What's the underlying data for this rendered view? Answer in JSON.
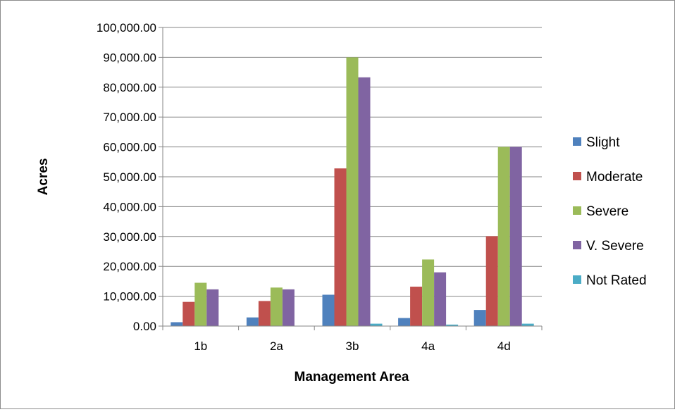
{
  "chart_data": {
    "type": "bar",
    "title": "",
    "xlabel": "Management Area",
    "ylabel": "Acres",
    "categories": [
      "1b",
      "2a",
      "3b",
      "4a",
      "4d"
    ],
    "ylim": [
      0,
      100000
    ],
    "yticks": [
      0,
      10000,
      20000,
      30000,
      40000,
      50000,
      60000,
      70000,
      80000,
      90000,
      100000
    ],
    "ytick_labels": [
      "0.00",
      "10,000.00",
      "20,000.00",
      "30,000.00",
      "40,000.00",
      "50,000.00",
      "60,000.00",
      "70,000.00",
      "80,000.00",
      "90,000.00",
      "100,000.00"
    ],
    "grid": true,
    "legend_position": "right",
    "series": [
      {
        "name": "Slight",
        "color": "#4f81bd",
        "values": [
          1300,
          2900,
          10500,
          2700,
          5400
        ]
      },
      {
        "name": "Moderate",
        "color": "#c0504d",
        "values": [
          8100,
          8400,
          52800,
          13200,
          30100
        ]
      },
      {
        "name": "Severe",
        "color": "#9bbb59",
        "values": [
          14500,
          12900,
          90000,
          22300,
          60000
        ]
      },
      {
        "name": "V. Severe",
        "color": "#8064a2",
        "values": [
          12300,
          12300,
          83300,
          18000,
          60000
        ]
      },
      {
        "name": "Not Rated",
        "color": "#4bacc6",
        "values": [
          0,
          0,
          800,
          500,
          800
        ]
      }
    ]
  }
}
